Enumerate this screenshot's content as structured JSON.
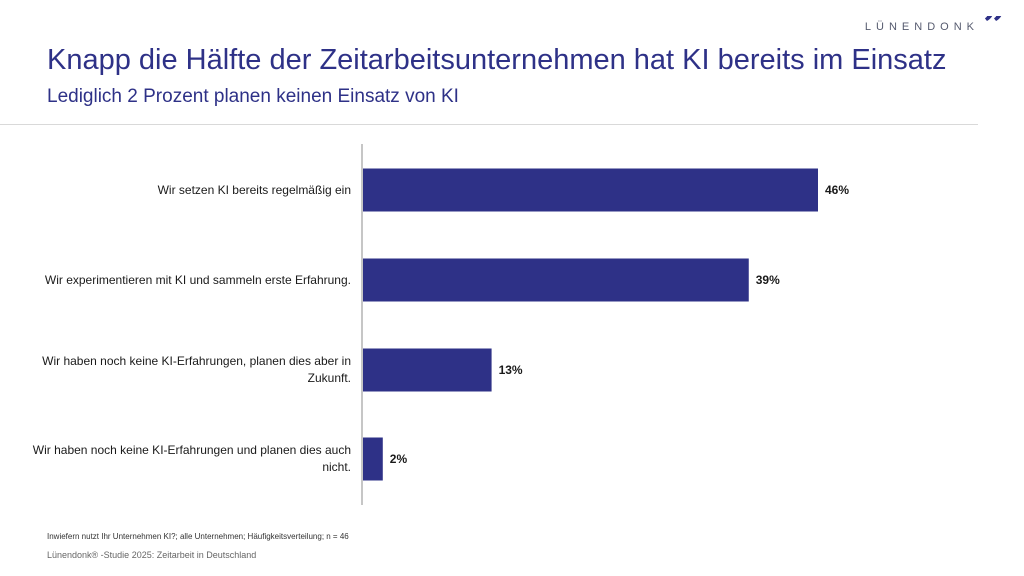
{
  "logo": {
    "text": "LÜNENDONK",
    "mark": "”"
  },
  "header": {
    "title": "Knapp die Hälfte der Zeitarbeitsunternehmen hat KI bereits im Einsatz",
    "subtitle": "Lediglich 2 Prozent planen keinen Einsatz von KI"
  },
  "chart_data": {
    "type": "bar",
    "orientation": "horizontal",
    "title": "Knapp die Hälfte der Zeitarbeitsunternehmen hat KI bereits im Einsatz",
    "categories": [
      "Wir setzen KI bereits regelmäßig ein",
      "Wir experimentieren mit KI und sammeln erste Erfahrung.",
      "Wir haben noch keine KI-Erfahrungen, planen dies aber in Zukunft.",
      "Wir haben noch keine KI-Erfahrungen und planen dies auch nicht."
    ],
    "values": [
      46,
      39,
      13,
      2
    ],
    "value_labels": [
      "46%",
      "39%",
      "13%",
      "2%"
    ],
    "unit": "%",
    "xlim": [
      0,
      100
    ],
    "xlabel": "",
    "ylabel": "",
    "bar_color": "#2e3187",
    "grid": false
  },
  "footer": {
    "question": "Inwiefern nutzt Ihr Unternehmen KI?; alle Unternehmen; Häufigkeitsverteilung; n = 46",
    "source": "Lünendonk® -Studie 2025: Zeitarbeit in Deutschland"
  }
}
